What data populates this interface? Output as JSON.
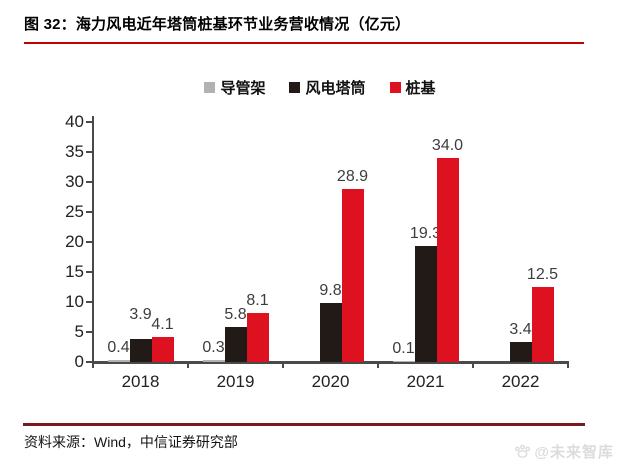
{
  "title": "图 32：海力风电近年塔筒桩基环节业务营收情况（亿元）",
  "source_note": "资料来源：Wind，中信证券研究部",
  "watermark": {
    "icon": "paw-logo",
    "text": "@未来智库"
  },
  "colors": {
    "title_underline": "#c00000",
    "footer_rule": "#7b1a1e",
    "axis": "#4a4a4a",
    "tick_label": "#222222",
    "value_label": "#3d3d3d",
    "watermark": "#dcdcdc"
  },
  "chart_data": {
    "type": "bar",
    "title": "海力风电近年塔筒桩基环节业务营收情况",
    "unit": "亿元",
    "categories": [
      "2018",
      "2019",
      "2020",
      "2021",
      "2022"
    ],
    "series": [
      {
        "key": "jacket",
        "name": "导管架",
        "color": "#b2b2b2",
        "values": [
          0.4,
          0.3,
          null,
          0.1,
          null
        ],
        "labels": [
          "0.4",
          "0.3",
          "",
          "0.1",
          ""
        ]
      },
      {
        "key": "wind-tower",
        "name": "风电塔筒",
        "color": "#211a17",
        "values": [
          3.9,
          5.8,
          9.8,
          19.3,
          3.4
        ],
        "labels": [
          "3.9",
          "5.8",
          "9.8",
          "19.3",
          "3.4"
        ]
      },
      {
        "key": "pile-foundation",
        "name": "桩基",
        "color": "#dd1120",
        "values": [
          4.1,
          8.1,
          28.9,
          34.0,
          12.5
        ],
        "labels": [
          "4.1",
          "8.1",
          "28.9",
          "34.0",
          "12.5"
        ]
      }
    ],
    "ylim": [
      0,
      40
    ],
    "ytick_step": 5,
    "grid": false,
    "legend_position": "top"
  }
}
